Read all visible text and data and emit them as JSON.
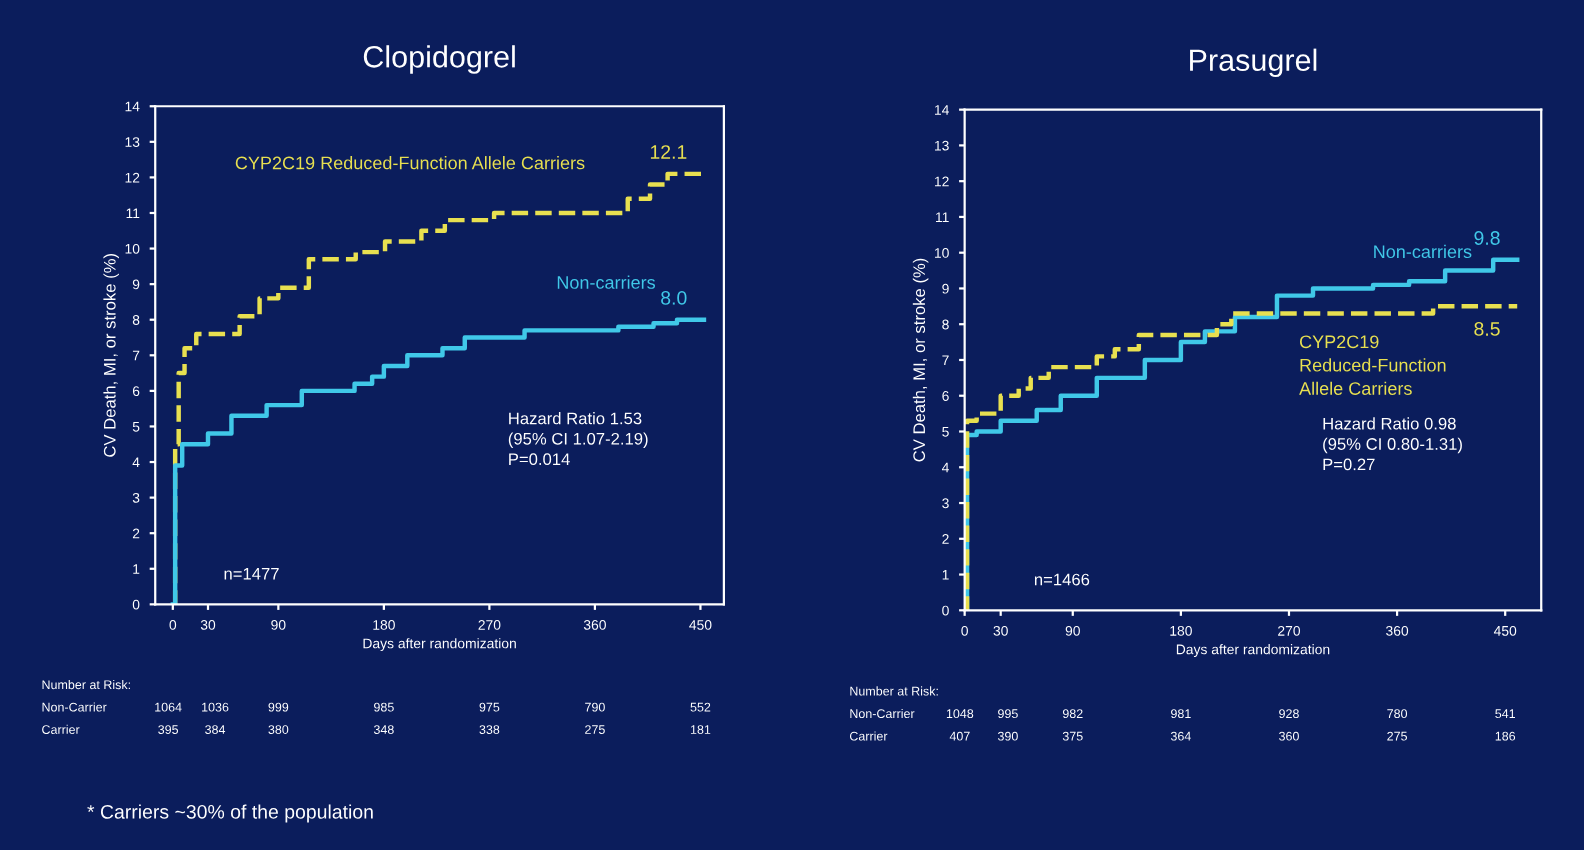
{
  "chart_data": [
    {
      "type": "step",
      "title": "Clopidogrel",
      "xlabel": "Days after randomization",
      "ylabel": "CV Death, MI, or stroke (%)",
      "xlim": [
        -15,
        470
      ],
      "ylim": [
        0,
        14
      ],
      "xticks": [
        0,
        30,
        90,
        180,
        270,
        360,
        450
      ],
      "yticks": [
        0,
        1,
        2,
        3,
        4,
        5,
        6,
        7,
        8,
        9,
        10,
        11,
        12,
        13,
        14
      ],
      "grid": false,
      "legend": false,
      "series": [
        {
          "name": "CYP2C19 Reduced-Function Allele Carriers",
          "color": "#e8e050",
          "line_style": "dashed",
          "x": [
            0,
            2,
            5,
            10,
            20,
            57,
            74,
            90,
            116,
            156,
            181,
            212,
            232,
            274,
            388,
            407,
            422,
            453
          ],
          "values": [
            0,
            4.5,
            6.5,
            7.2,
            7.6,
            8.1,
            8.6,
            8.9,
            9.7,
            9.9,
            10.2,
            10.5,
            10.8,
            11.0,
            11.4,
            11.8,
            12.1,
            12.1
          ],
          "value_labels": [
            null,
            null,
            null,
            null,
            null,
            null,
            null,
            null,
            null,
            null,
            null,
            null,
            null,
            null,
            null,
            null,
            null,
            "12.1"
          ]
        },
        {
          "name": "Non-carriers",
          "color": "#40c8e8",
          "line_style": "solid",
          "x": [
            0,
            2,
            8,
            30,
            50,
            80,
            110,
            155,
            170,
            180,
            200,
            230,
            249,
            300,
            380,
            410,
            430,
            453
          ],
          "values": [
            0,
            3.9,
            4.5,
            4.8,
            5.3,
            5.6,
            6.0,
            6.2,
            6.4,
            6.7,
            7.0,
            7.2,
            7.5,
            7.7,
            7.8,
            7.9,
            8.0,
            8.0
          ],
          "value_labels": [
            null,
            null,
            null,
            null,
            null,
            null,
            null,
            null,
            null,
            null,
            null,
            null,
            null,
            null,
            null,
            null,
            null,
            "8.0"
          ]
        }
      ],
      "annotations": [
        "n=1477",
        "Hazard Ratio 1.53\n(95% CI 1.07-2.19)\nP=0.014",
        "Number at Risk:",
        "Non-Carrier",
        "1064",
        "1036",
        "999",
        "985",
        "975",
        "790",
        "552",
        "Carrier",
        "395",
        "384",
        "380",
        "348",
        "338",
        "275",
        "181",
        "* Carriers ~30% of the population"
      ]
    },
    {
      "type": "step",
      "title": "Prasugrel",
      "xlabel": "Days after randomization",
      "ylabel": "CV Death, MI, or stroke (%)",
      "xlim": [
        0,
        480
      ],
      "ylim": [
        0,
        14
      ],
      "xticks": [
        0,
        30,
        90,
        180,
        270,
        360,
        450
      ],
      "yticks": [
        0,
        1,
        2,
        3,
        4,
        5,
        6,
        7,
        8,
        9,
        10,
        11,
        12,
        13,
        14
      ],
      "grid": false,
      "legend": false,
      "series": [
        {
          "name": "Non-carriers",
          "color": "#40c8e8",
          "line_style": "solid",
          "x": [
            0,
            2,
            10,
            30,
            60,
            80,
            110,
            150,
            180,
            200,
            225,
            260,
            290,
            340,
            370,
            400,
            440,
            460
          ],
          "values": [
            0,
            4.9,
            5.0,
            5.3,
            5.6,
            6.0,
            6.5,
            7.0,
            7.5,
            7.8,
            8.2,
            8.8,
            9.0,
            9.1,
            9.2,
            9.5,
            9.8,
            9.8
          ],
          "value_labels": [
            null,
            null,
            null,
            null,
            null,
            null,
            null,
            null,
            null,
            null,
            null,
            null,
            null,
            null,
            null,
            null,
            null,
            "9.8"
          ]
        },
        {
          "name": "CYP2C19\nReduced-Function\nAllele Carriers",
          "color": "#e8e050",
          "line_style": "dashed",
          "x": [
            0,
            2,
            10,
            30,
            45,
            55,
            70,
            110,
            125,
            145,
            210,
            222,
            390,
            460
          ],
          "values": [
            0,
            5.3,
            5.5,
            6.0,
            6.2,
            6.5,
            6.8,
            7.1,
            7.3,
            7.7,
            8.0,
            8.3,
            8.5,
            8.5
          ],
          "value_labels": [
            null,
            null,
            null,
            null,
            null,
            null,
            null,
            null,
            null,
            null,
            null,
            null,
            null,
            "8.5"
          ]
        }
      ],
      "annotations": [
        "n=1466",
        "Hazard Ratio 0.98\n(95% CI 0.80-1.31)\nP=0.27",
        "Number at Risk:",
        "Non-Carrier",
        "1048",
        "995",
        "982",
        "981",
        "928",
        "780",
        "541",
        "Carrier",
        "407",
        "390",
        "375",
        "364",
        "360",
        "275",
        "186"
      ]
    }
  ]
}
